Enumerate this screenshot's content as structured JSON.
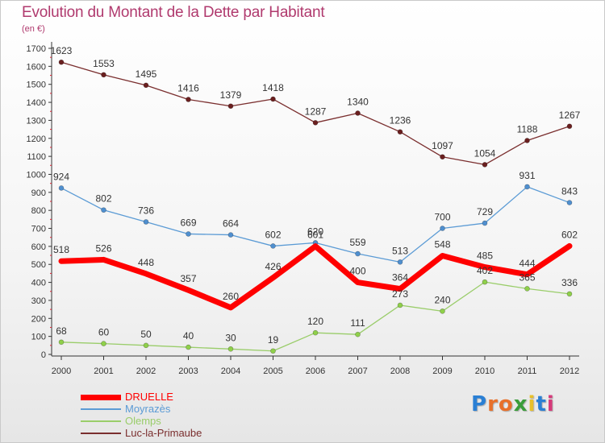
{
  "title": "Evolution du Montant de la Dette par Habitant",
  "unit_label": "(en €)",
  "chart_data": {
    "type": "line",
    "x": [
      "2000",
      "2001",
      "2002",
      "2003",
      "2004",
      "2005",
      "2006",
      "2007",
      "2008",
      "2009",
      "2010",
      "2011",
      "2012"
    ],
    "ylim": [
      0,
      1700
    ],
    "yticks": [
      0,
      100,
      200,
      300,
      400,
      500,
      600,
      700,
      800,
      900,
      1000,
      1100,
      1200,
      1300,
      1400,
      1500,
      1600,
      1700
    ],
    "grid": false,
    "legend_placement": "bottom-left",
    "series": [
      {
        "name": "DRUELLE",
        "color": "#ff0000",
        "values": [
          518,
          526,
          448,
          357,
          260,
          426,
          601,
          400,
          364,
          548,
          485,
          444,
          602
        ]
      },
      {
        "name": "Moyrazès",
        "color": "#5b9bd5",
        "values": [
          924,
          802,
          736,
          669,
          664,
          602,
          620,
          559,
          513,
          700,
          729,
          931,
          843
        ]
      },
      {
        "name": "Olemps",
        "color": "#9acd6a",
        "values": [
          68,
          60,
          50,
          40,
          30,
          19,
          120,
          111,
          273,
          240,
          402,
          365,
          336
        ]
      },
      {
        "name": "Luc-la-Primaube",
        "color": "#7a2e2e",
        "values": [
          1623,
          1553,
          1495,
          1416,
          1379,
          1418,
          1287,
          1340,
          1236,
          1097,
          1054,
          1188,
          1267
        ]
      }
    ],
    "point_labels": [
      [
        "518",
        "526",
        "448",
        "357",
        "260",
        "426",
        "601",
        "400",
        "364",
        "548",
        "485",
        "444",
        "602"
      ],
      [
        "924",
        "802",
        "736",
        "669",
        "664",
        "602",
        "620",
        "559",
        "513",
        "700",
        "729",
        "931",
        "843"
      ],
      [
        "68",
        "60",
        "50",
        "40",
        "30",
        "19",
        "120",
        "111",
        "273",
        "240",
        "402",
        "365",
        "336"
      ],
      [
        "1623",
        "1553",
        "1495",
        "1416",
        "1379",
        "1418",
        "1287",
        "1340",
        "1236",
        "1097",
        "1054",
        "1188",
        "1267"
      ]
    ]
  },
  "logo": {
    "letters": [
      "P",
      "r",
      "o",
      "x",
      "i",
      "t",
      "i"
    ],
    "colors": [
      "#2a7fd4",
      "#e8702a",
      "#e8702a",
      "#3a9d3a",
      "#e8c02a",
      "#2a7fd4",
      "#d63a7a"
    ]
  }
}
